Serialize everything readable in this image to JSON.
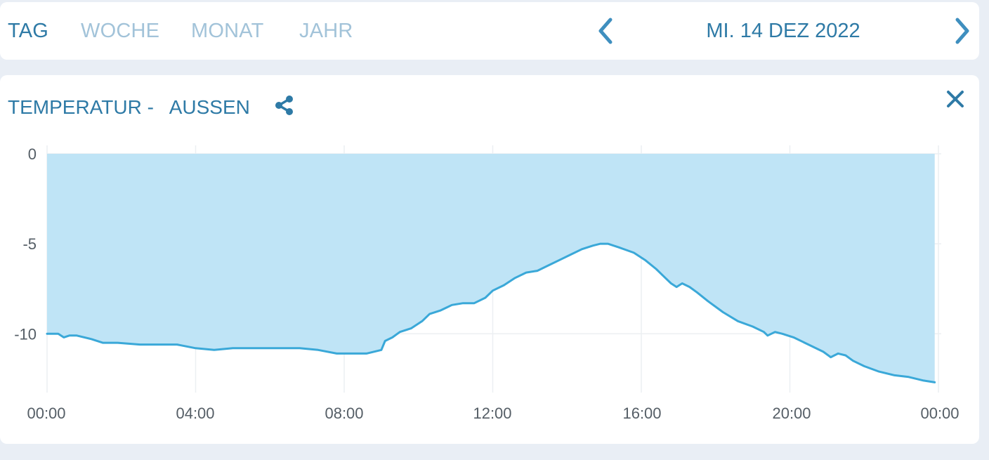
{
  "tabs": [
    {
      "label": "TAG",
      "active": true
    },
    {
      "label": "WOCHE",
      "active": false
    },
    {
      "label": "MONAT",
      "active": false
    },
    {
      "label": "JAHR",
      "active": false
    }
  ],
  "date_label": "MI. 14 DEZ 2022",
  "nav": {
    "prev_icon": "chevron-left-icon",
    "next_icon": "chevron-right-icon"
  },
  "chart_title": "TEMPERATUR -   AUSSEN",
  "icons": {
    "share": "share-icon",
    "close": "close-icon"
  },
  "colors": {
    "accent": "#2e7aa6",
    "inactive_tab": "#a2c3d9",
    "line": "#3aa8d8",
    "fill": "#bfe4f6",
    "background": "#e9eef5"
  },
  "chart_data": {
    "type": "area",
    "title": "TEMPERATUR -   AUSSEN",
    "xlabel": "",
    "ylabel": "",
    "x_ticks": [
      "00:00",
      "04:00",
      "08:00",
      "12:00",
      "16:00",
      "20:00",
      "00:00"
    ],
    "y_ticks": [
      "0",
      "-5",
      "-10"
    ],
    "ylim": [
      -12.8,
      0
    ],
    "xlim_hours": [
      0,
      24
    ],
    "grid": true,
    "fill_to": 0,
    "series": [
      {
        "name": "",
        "x_hours": [
          0,
          0.3,
          0.45,
          0.6,
          0.8,
          1.2,
          1.5,
          1.9,
          2.5,
          3.0,
          3.5,
          4.0,
          4.5,
          5.0,
          5.3,
          5.8,
          6.3,
          6.8,
          7.3,
          7.8,
          8.3,
          8.6,
          9.0,
          9.1,
          9.3,
          9.5,
          9.8,
          10.1,
          10.3,
          10.6,
          10.9,
          11.2,
          11.5,
          11.8,
          12.0,
          12.3,
          12.6,
          12.9,
          13.2,
          13.5,
          13.8,
          14.1,
          14.4,
          14.7,
          14.9,
          15.1,
          15.4,
          15.8,
          16.1,
          16.4,
          16.6,
          16.8,
          16.95,
          17.1,
          17.3,
          17.5,
          17.8,
          18.2,
          18.6,
          19.0,
          19.3,
          19.4,
          19.6,
          19.8,
          20.1,
          20.5,
          20.9,
          21.1,
          21.3,
          21.5,
          21.7,
          22.0,
          22.4,
          22.8,
          23.2,
          23.6,
          23.9
        ],
        "y": [
          -10.0,
          -10.0,
          -10.2,
          -10.1,
          -10.1,
          -10.3,
          -10.5,
          -10.5,
          -10.6,
          -10.6,
          -10.6,
          -10.8,
          -10.9,
          -10.8,
          -10.8,
          -10.8,
          -10.8,
          -10.8,
          -10.9,
          -11.1,
          -11.1,
          -11.1,
          -10.9,
          -10.4,
          -10.2,
          -9.9,
          -9.7,
          -9.3,
          -8.9,
          -8.7,
          -8.4,
          -8.3,
          -8.3,
          -8.0,
          -7.6,
          -7.3,
          -6.9,
          -6.6,
          -6.5,
          -6.2,
          -5.9,
          -5.6,
          -5.3,
          -5.1,
          -5.0,
          -5.0,
          -5.2,
          -5.5,
          -5.9,
          -6.4,
          -6.8,
          -7.2,
          -7.4,
          -7.2,
          -7.4,
          -7.7,
          -8.2,
          -8.8,
          -9.3,
          -9.6,
          -9.9,
          -10.1,
          -9.9,
          -10.0,
          -10.2,
          -10.6,
          -11.0,
          -11.3,
          -11.1,
          -11.2,
          -11.5,
          -11.8,
          -12.1,
          -12.3,
          -12.4,
          -12.6,
          -12.7
        ]
      }
    ]
  }
}
